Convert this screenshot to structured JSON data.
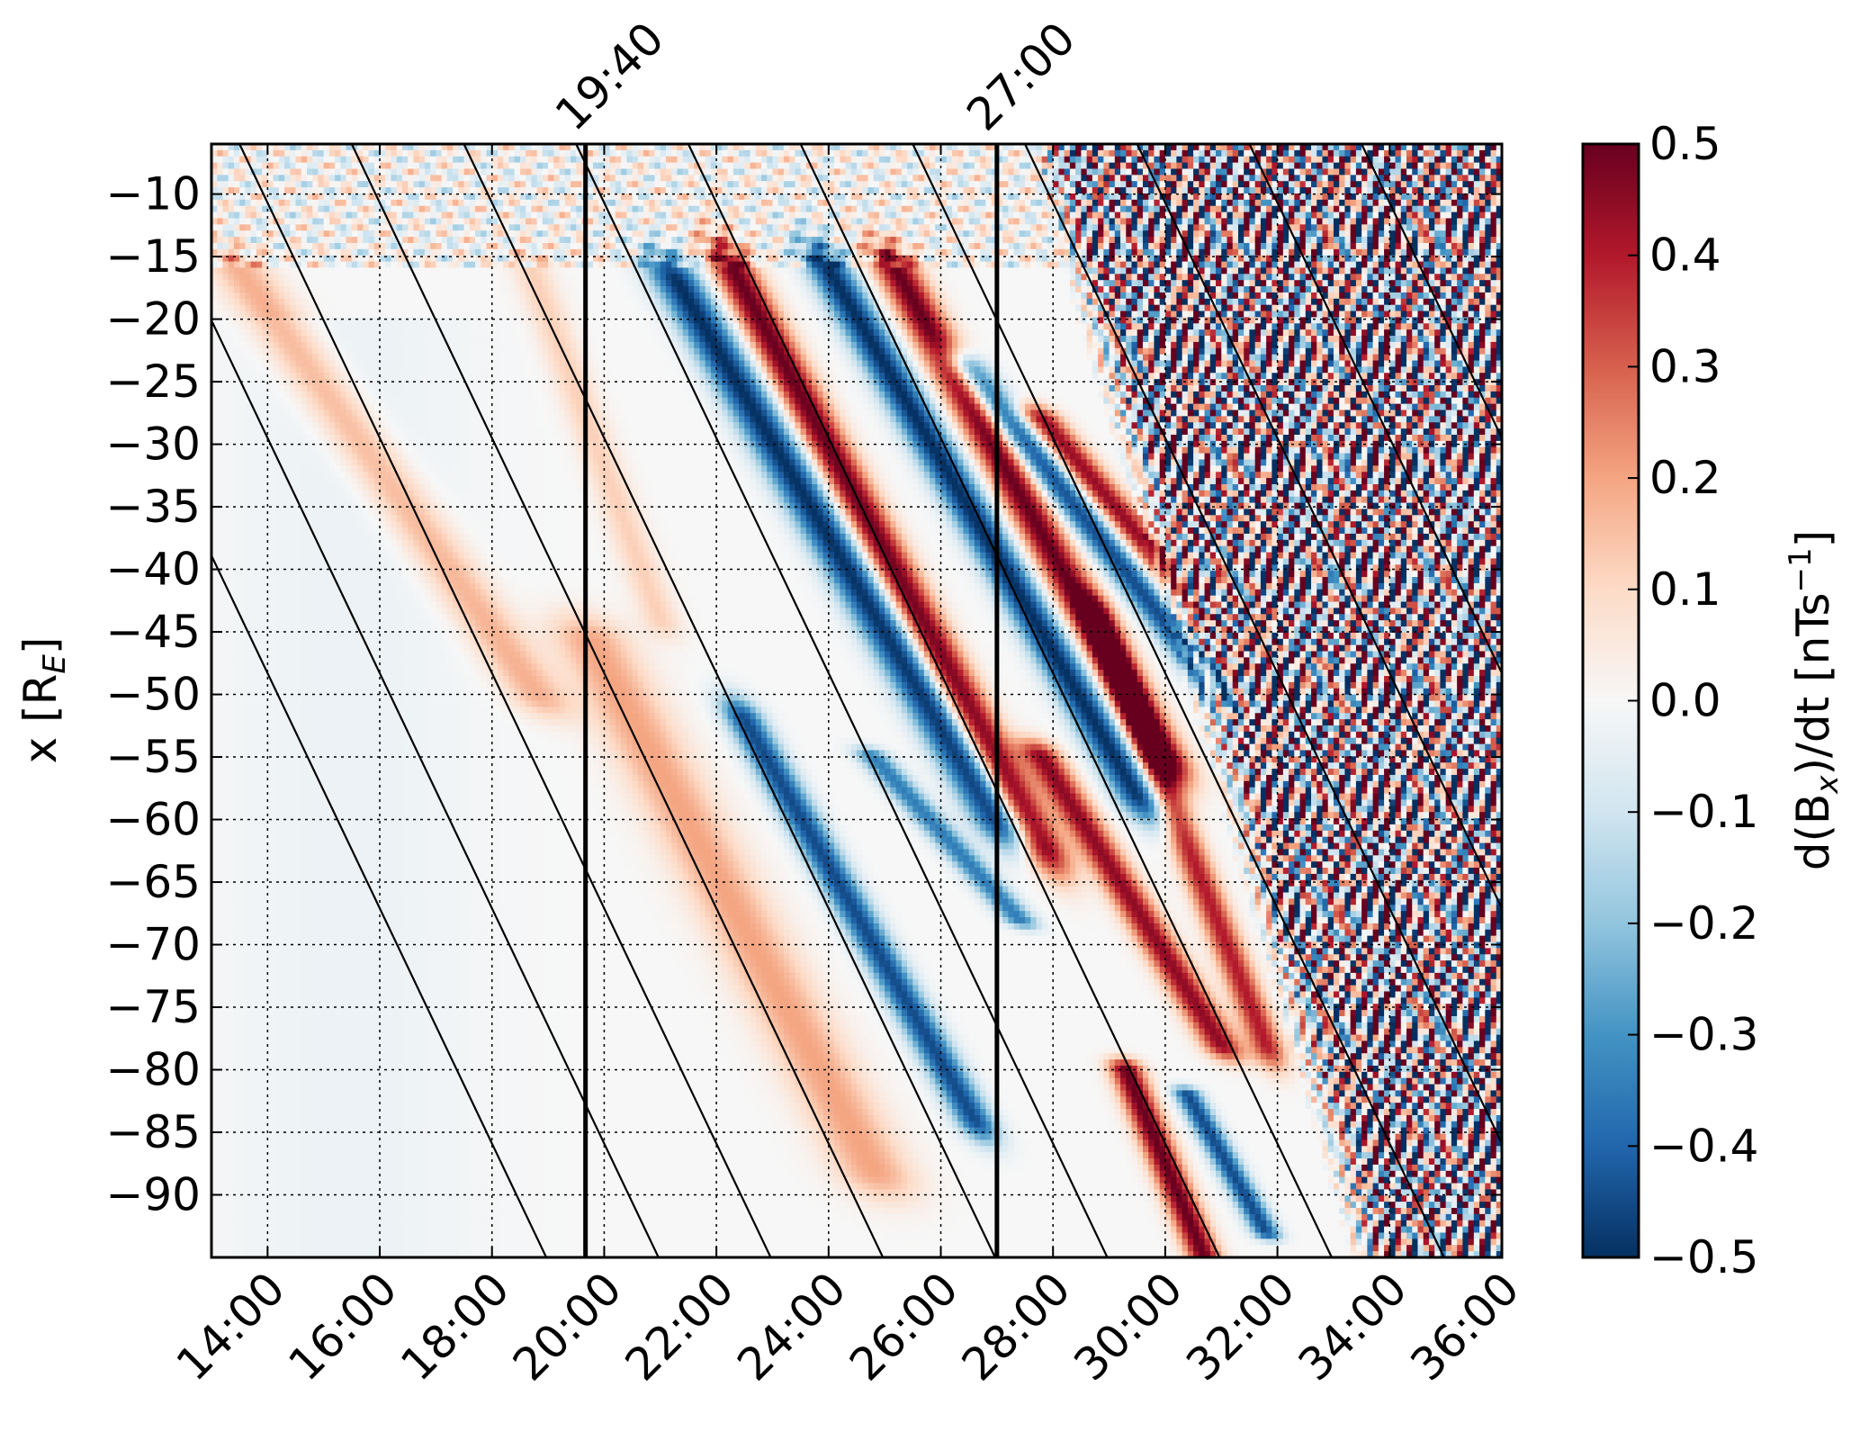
{
  "chart_data": {
    "type": "heatmap",
    "title": "",
    "xlabel": "",
    "ylabel": "x [R_E]",
    "ylabel_main": "x [R",
    "ylabel_sub": "E",
    "ylabel_close": "]",
    "colorbar_label_parts": {
      "main": "d(B",
      "sub": "x",
      "mid": ")/dt [nTs",
      "sup": "−1",
      "close": "]"
    },
    "x_unit": "mm:ss",
    "x_range_minutes": [
      13.0,
      36.0
    ],
    "xlim_labels": [
      "13:00",
      "36:00"
    ],
    "x_ticks": [
      {
        "value": 14,
        "label": "14:00"
      },
      {
        "value": 16,
        "label": "16:00"
      },
      {
        "value": 18,
        "label": "18:00"
      },
      {
        "value": 20,
        "label": "20:00"
      },
      {
        "value": 22,
        "label": "22:00"
      },
      {
        "value": 24,
        "label": "24:00"
      },
      {
        "value": 26,
        "label": "26:00"
      },
      {
        "value": 28,
        "label": "28:00"
      },
      {
        "value": 30,
        "label": "30:00"
      },
      {
        "value": 32,
        "label": "32:00"
      },
      {
        "value": 34,
        "label": "34:00"
      },
      {
        "value": 36,
        "label": "36:00"
      }
    ],
    "ylim": [
      -95,
      -6
    ],
    "y_ticks": [
      {
        "value": -10,
        "label": "−10"
      },
      {
        "value": -15,
        "label": "−15"
      },
      {
        "value": -20,
        "label": "−20"
      },
      {
        "value": -25,
        "label": "−25"
      },
      {
        "value": -30,
        "label": "−30"
      },
      {
        "value": -35,
        "label": "−35"
      },
      {
        "value": -40,
        "label": "−40"
      },
      {
        "value": -45,
        "label": "−45"
      },
      {
        "value": -50,
        "label": "−50"
      },
      {
        "value": -55,
        "label": "−55"
      },
      {
        "value": -60,
        "label": "−60"
      },
      {
        "value": -65,
        "label": "−65"
      },
      {
        "value": -70,
        "label": "−70"
      },
      {
        "value": -75,
        "label": "−75"
      },
      {
        "value": -80,
        "label": "−80"
      },
      {
        "value": -85,
        "label": "−85"
      },
      {
        "value": -90,
        "label": "−90"
      }
    ],
    "colorbar": {
      "min": -0.5,
      "max": 0.5,
      "ticks": [
        {
          "value": 0.5,
          "label": "0.5"
        },
        {
          "value": 0.4,
          "label": "0.4"
        },
        {
          "value": 0.3,
          "label": "0.3"
        },
        {
          "value": 0.2,
          "label": "0.2"
        },
        {
          "value": 0.1,
          "label": "0.1"
        },
        {
          "value": 0.0,
          "label": "0.0"
        },
        {
          "value": -0.1,
          "label": "−0.1"
        },
        {
          "value": -0.2,
          "label": "−0.2"
        },
        {
          "value": -0.3,
          "label": "−0.3"
        },
        {
          "value": -0.4,
          "label": "−0.4"
        },
        {
          "value": -0.5,
          "label": "−0.5"
        }
      ],
      "colors": [
        "#053061",
        "#2166ac",
        "#4393c3",
        "#92c5de",
        "#d1e5f0",
        "#f7f7f7",
        "#fddbc7",
        "#f4a582",
        "#d6604d",
        "#b2182b",
        "#67001f"
      ]
    },
    "grid": true,
    "vertical_markers": [
      {
        "time": "19:40",
        "value": 19.667
      },
      {
        "time": "27:00",
        "value": 27.0
      }
    ],
    "reference_lines": {
      "description_free": true,
      "slope_RE_per_min": -9.4,
      "intercept_times_at_x_minus6": [
        9.5,
        11.5,
        13.5,
        15.5,
        17.5,
        19.5,
        21.5,
        23.5,
        25.5,
        27.5,
        29.5,
        31.5,
        33.5
      ]
    },
    "bands": [
      {
        "x0": 13.5,
        "x1": 18.8,
        "y0": -16,
        "y1": -50,
        "amp": 0.18,
        "w": 0.55
      },
      {
        "x0": 18.7,
        "x1": 21.0,
        "y0": -16,
        "y1": -44,
        "amp": 0.12,
        "w": 0.35
      },
      {
        "x0": 19.8,
        "x1": 24.8,
        "y0": -46,
        "y1": -88,
        "amp": 0.2,
        "w": 0.7
      },
      {
        "x0": 21.3,
        "x1": 27.0,
        "y0": -17,
        "y1": -60,
        "amp": -0.5,
        "w": 0.45
      },
      {
        "x0": 22.3,
        "x1": 27.8,
        "y0": -16,
        "y1": -62,
        "amp": 0.5,
        "w": 0.4
      },
      {
        "x0": 24.0,
        "x1": 29.5,
        "y0": -16,
        "y1": -58,
        "amp": -0.5,
        "w": 0.4
      },
      {
        "x0": 25.2,
        "x1": 30.0,
        "y0": -16,
        "y1": -55,
        "amp": 0.5,
        "w": 0.4
      },
      {
        "x0": 26.5,
        "x1": 31.0,
        "y0": -24,
        "y1": -50,
        "amp": -0.45,
        "w": 0.35
      },
      {
        "x0": 27.8,
        "x1": 31.5,
        "y0": -28,
        "y1": -48,
        "amp": 0.45,
        "w": 0.35
      },
      {
        "x0": 22.5,
        "x1": 26.6,
        "y0": -52,
        "y1": -84,
        "amp": -0.45,
        "w": 0.35
      },
      {
        "x0": 24.8,
        "x1": 27.4,
        "y0": -55,
        "y1": -68,
        "amp": -0.35,
        "w": 0.3
      },
      {
        "x0": 27.8,
        "x1": 31.0,
        "y0": -55,
        "y1": -78,
        "amp": 0.45,
        "w": 0.35
      },
      {
        "x0": 29.3,
        "x1": 30.7,
        "y0": -80,
        "y1": -95,
        "amp": 0.5,
        "w": 0.3
      },
      {
        "x0": 30.4,
        "x1": 31.8,
        "y0": -82,
        "y1": -93,
        "amp": -0.45,
        "w": 0.25
      },
      {
        "x0": 28.8,
        "x1": 31.8,
        "y0": -44,
        "y1": -78,
        "amp": 0.4,
        "w": 0.3
      }
    ]
  }
}
